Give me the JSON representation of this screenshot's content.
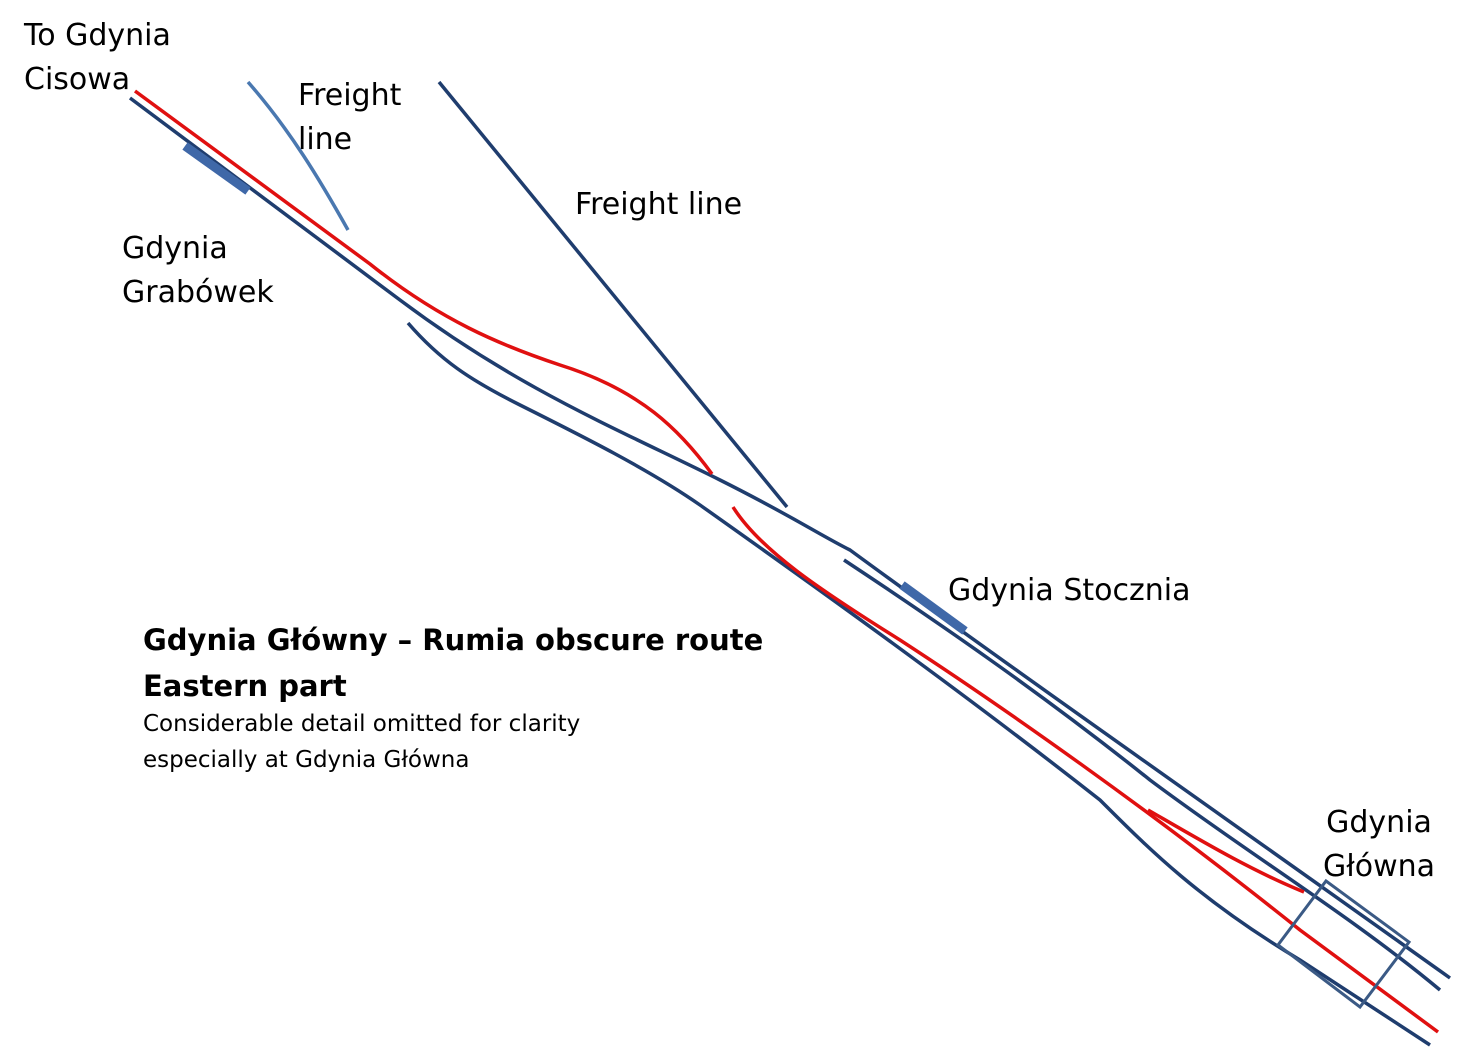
{
  "labels": {
    "to_gdynia_cisowa": [
      "To Gdynia",
      "Cisowa"
    ],
    "freight_line_upper": [
      "Freight",
      "line"
    ],
    "freight_line": "Freight line",
    "gdynia_grabowek": [
      "Gdynia",
      "Grabówek"
    ],
    "gdynia_stocznia": "Gdynia Stocznia",
    "gdynia_glowna": [
      "Gdynia",
      "Główna"
    ]
  },
  "caption": {
    "title_line1": "Gdynia Główny – Rumia obscure route",
    "title_line2": "Eastern part",
    "note_line1": "Considerable detail omitted for clarity",
    "note_line2": "especially at Gdynia Główna"
  },
  "colors": {
    "main_track": "#1f3d6e",
    "highlight_route": "#e01010",
    "secondary_track": "#4a78b0",
    "platform": "#3f68a8",
    "station_outline": "#3b5a85"
  }
}
